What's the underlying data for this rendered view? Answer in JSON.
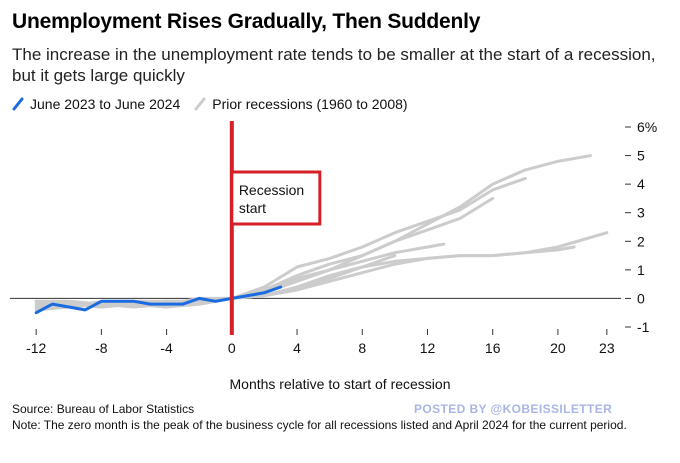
{
  "title": "Unemployment Rises Gradually, Then Suddenly",
  "subtitle": "The increase in the unemployment rate tends to be smaller at the start of a recession, but it gets large quickly",
  "legend": [
    {
      "label": "June 2023 to June 2024",
      "color": "#1a6be0"
    },
    {
      "label": "Prior recessions (1960 to 2008)",
      "color": "#cccccc"
    }
  ],
  "annotation": {
    "text_line1": "Recession",
    "text_line2": "start",
    "color": "#d62027"
  },
  "xlabel": "Months relative to start of recession",
  "source": "Source: Bureau of Labor Statistics",
  "note": "Note: The zero month is the peak of the business cycle for all recessions listed and April 2024 for the current period.",
  "watermark": "POSTED BY @KOBEISSILETTER",
  "chart_data": {
    "type": "line",
    "x_ticks": [
      -12,
      -8,
      -4,
      0,
      4,
      8,
      12,
      16,
      20,
      23
    ],
    "x_tick_labels": [
      "-12",
      "-8",
      "-4",
      "0",
      "4",
      "8",
      "12",
      "16",
      "20",
      "23"
    ],
    "y_ticks": [
      -1,
      0,
      1,
      2,
      3,
      4,
      5,
      6
    ],
    "y_tick_labels": [
      "-1",
      "0",
      "1",
      "2",
      "3",
      "4",
      "5",
      "6%"
    ],
    "xlim": [
      -12.5,
      23.5
    ],
    "ylim": [
      -1,
      6
    ],
    "y_axis_side": "right",
    "recession_start_x": 0,
    "series": [
      {
        "name": "June 2023 to June 2024",
        "color": "#1a6be0",
        "highlight": true,
        "x": [
          -12,
          -11,
          -10,
          -9,
          -8,
          -7,
          -6,
          -5,
          -4,
          -3,
          -2,
          -1,
          0,
          1,
          2,
          3
        ],
        "y": [
          -0.5,
          -0.2,
          -0.3,
          -0.4,
          -0.1,
          -0.1,
          -0.1,
          -0.2,
          -0.2,
          -0.2,
          0.0,
          -0.1,
          0.0,
          0.1,
          0.2,
          0.4
        ]
      },
      {
        "name": "Prior recessions (1960 to 2008)",
        "color": "#cccccc",
        "x": [
          -12,
          -10,
          -8,
          -6,
          -4,
          -2,
          0,
          2,
          4,
          6,
          8,
          10,
          12,
          14,
          16,
          18,
          20,
          22
        ],
        "y": [
          -0.3,
          -0.2,
          -0.3,
          -0.2,
          -0.1,
          -0.1,
          0.0,
          0.2,
          0.6,
          1.0,
          1.5,
          2.0,
          2.6,
          3.2,
          4.0,
          4.5,
          4.8,
          5.0
        ]
      },
      {
        "color": "#cccccc",
        "x": [
          -12,
          -10,
          -8,
          -6,
          -4,
          -2,
          0,
          2,
          4,
          6,
          8,
          10,
          12,
          14,
          16,
          18
        ],
        "y": [
          -0.1,
          -0.2,
          -0.2,
          -0.1,
          -0.2,
          0.0,
          0.0,
          0.4,
          1.1,
          1.4,
          1.8,
          2.3,
          2.7,
          3.1,
          3.8,
          4.2
        ]
      },
      {
        "color": "#cccccc",
        "x": [
          -12,
          -10,
          -8,
          -6,
          -4,
          -2,
          0,
          2,
          4,
          6,
          8,
          10,
          12,
          14,
          16
        ],
        "y": [
          -0.2,
          -0.3,
          -0.1,
          -0.2,
          -0.3,
          -0.1,
          0.0,
          0.3,
          0.8,
          1.2,
          1.5,
          2.0,
          2.4,
          2.8,
          3.5
        ]
      },
      {
        "color": "#cccccc",
        "x": [
          -12,
          -10,
          -8,
          -6,
          -4,
          -2,
          0,
          2,
          4,
          6,
          8,
          10,
          12,
          13
        ],
        "y": [
          -0.4,
          -0.3,
          -0.2,
          -0.3,
          -0.2,
          -0.1,
          0.0,
          0.2,
          0.7,
          1.0,
          1.3,
          1.6,
          1.8,
          1.9
        ]
      },
      {
        "color": "#cccccc",
        "x": [
          -12,
          -10,
          -8,
          -6,
          -4,
          -2,
          0,
          2,
          4,
          6,
          8,
          10,
          12,
          14,
          16,
          18,
          20,
          23
        ],
        "y": [
          -0.2,
          -0.2,
          -0.3,
          -0.2,
          -0.1,
          -0.2,
          0.0,
          0.1,
          0.3,
          0.6,
          0.9,
          1.2,
          1.4,
          1.5,
          1.5,
          1.6,
          1.8,
          2.3
        ]
      },
      {
        "color": "#cccccc",
        "x": [
          -12,
          -10,
          -8,
          -6,
          -4,
          -2,
          0,
          2,
          4,
          6,
          8,
          10,
          12,
          14,
          16,
          18,
          20,
          21
        ],
        "y": [
          -0.3,
          -0.3,
          -0.2,
          -0.2,
          -0.3,
          -0.2,
          0.0,
          0.1,
          0.4,
          0.8,
          1.1,
          1.3,
          1.4,
          1.5,
          1.5,
          1.6,
          1.7,
          1.8
        ]
      },
      {
        "color": "#cccccc",
        "x": [
          -12,
          -10,
          -8,
          -6,
          -4,
          -2,
          0,
          2,
          4,
          6,
          8,
          10
        ],
        "y": [
          -0.1,
          -0.1,
          -0.2,
          -0.1,
          -0.1,
          -0.1,
          0.0,
          0.1,
          0.3,
          0.7,
          1.1,
          1.5
        ]
      }
    ]
  }
}
